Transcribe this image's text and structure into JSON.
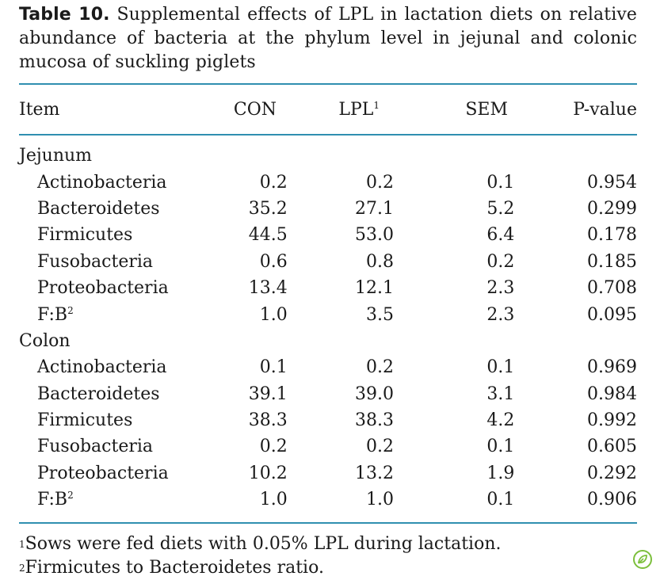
{
  "caption": {
    "label": "Table 10.",
    "text": " Supplemental effects of LPL in lactation diets on relative abundance of bacteria at the phylum level in jejunal and colonic mucosa of suckling piglets"
  },
  "header": {
    "item": "Item",
    "con": "CON",
    "lpl": "LPL",
    "lpl_note": "1",
    "sem": "SEM",
    "p": "P-value"
  },
  "sections": [
    {
      "name": "Jejunum",
      "rows": [
        {
          "item": "Actinobacteria",
          "note": "",
          "con": "0.2",
          "lpl": "0.2",
          "sem": "0.1",
          "p": "0.954"
        },
        {
          "item": "Bacteroidetes",
          "note": "",
          "con": "35.2",
          "lpl": "27.1",
          "sem": "5.2",
          "p": "0.299"
        },
        {
          "item": "Firmicutes",
          "note": "",
          "con": "44.5",
          "lpl": "53.0",
          "sem": "6.4",
          "p": "0.178"
        },
        {
          "item": "Fusobacteria",
          "note": "",
          "con": "0.6",
          "lpl": "0.8",
          "sem": "0.2",
          "p": "0.185"
        },
        {
          "item": "Proteobacteria",
          "note": "",
          "con": "13.4",
          "lpl": "12.1",
          "sem": "2.3",
          "p": "0.708"
        },
        {
          "item": "F:B",
          "note": "2",
          "con": "1.0",
          "lpl": "3.5",
          "sem": "2.3",
          "p": "0.095"
        }
      ]
    },
    {
      "name": "Colon",
      "rows": [
        {
          "item": "Actinobacteria",
          "note": "",
          "con": "0.1",
          "lpl": "0.2",
          "sem": "0.1",
          "p": "0.969"
        },
        {
          "item": "Bacteroidetes",
          "note": "",
          "con": "39.1",
          "lpl": "39.0",
          "sem": "3.1",
          "p": "0.984"
        },
        {
          "item": "Firmicutes",
          "note": "",
          "con": "38.3",
          "lpl": "38.3",
          "sem": "4.2",
          "p": "0.992"
        },
        {
          "item": "Fusobacteria",
          "note": "",
          "con": "0.2",
          "lpl": "0.2",
          "sem": "0.1",
          "p": "0.605"
        },
        {
          "item": "Proteobacteria",
          "note": "",
          "con": "10.2",
          "lpl": "13.2",
          "sem": "1.9",
          "p": "0.292"
        },
        {
          "item": "F:B",
          "note": "2",
          "con": "1.0",
          "lpl": "1.0",
          "sem": "0.1",
          "p": "0.906"
        }
      ]
    }
  ],
  "footnotes": [
    {
      "mark": "1",
      "text": "Sows were fed diets with 0.05% LPL during lactation."
    },
    {
      "mark": "2",
      "text": "Firmicutes to Bacteroidetes ratio."
    }
  ],
  "colors": {
    "rule": "#2f8fb0",
    "badge": "#7cbf3c"
  },
  "badge_icon": "leaf-badge-icon"
}
